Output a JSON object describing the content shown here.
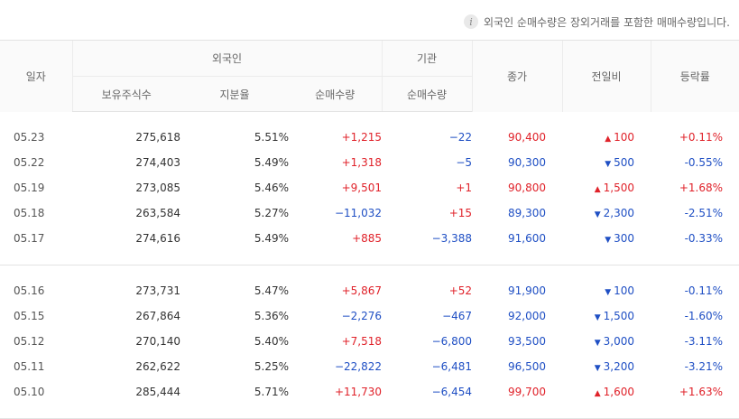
{
  "notice": {
    "icon": "info-icon",
    "text": "외국인 순매수량은 장외거래를 포함한 매매수량입니다."
  },
  "headers": {
    "date": "일자",
    "foreign": "외국인",
    "institution": "기관",
    "close": "종가",
    "change": "전일비",
    "rate": "등락률",
    "holdings": "보유주식수",
    "ratio": "지분율",
    "foreign_net": "순매수량",
    "inst_net": "순매수량"
  },
  "colors": {
    "up": "#e0222a",
    "down": "#1f4fc4"
  },
  "groups": [
    [
      {
        "date": "05.23",
        "holdings": "275,618",
        "ratio": "5.51%",
        "foreign_net": "+1,215",
        "inst_net": "−22",
        "close": "90,400",
        "dir": "up",
        "change": "100",
        "rate": "+0.11%"
      },
      {
        "date": "05.22",
        "holdings": "274,403",
        "ratio": "5.49%",
        "foreign_net": "+1,318",
        "inst_net": "−5",
        "close": "90,300",
        "dir": "down",
        "change": "500",
        "rate": "-0.55%"
      },
      {
        "date": "05.19",
        "holdings": "273,085",
        "ratio": "5.46%",
        "foreign_net": "+9,501",
        "inst_net": "+1",
        "close": "90,800",
        "dir": "up",
        "change": "1,500",
        "rate": "+1.68%"
      },
      {
        "date": "05.18",
        "holdings": "263,584",
        "ratio": "5.27%",
        "foreign_net": "−11,032",
        "inst_net": "+15",
        "close": "89,300",
        "dir": "down",
        "change": "2,300",
        "rate": "-2.51%"
      },
      {
        "date": "05.17",
        "holdings": "274,616",
        "ratio": "5.49%",
        "foreign_net": "+885",
        "inst_net": "−3,388",
        "close": "91,600",
        "dir": "down",
        "change": "300",
        "rate": "-0.33%"
      }
    ],
    [
      {
        "date": "05.16",
        "holdings": "273,731",
        "ratio": "5.47%",
        "foreign_net": "+5,867",
        "inst_net": "+52",
        "close": "91,900",
        "dir": "down",
        "change": "100",
        "rate": "-0.11%"
      },
      {
        "date": "05.15",
        "holdings": "267,864",
        "ratio": "5.36%",
        "foreign_net": "−2,276",
        "inst_net": "−467",
        "close": "92,000",
        "dir": "down",
        "change": "1,500",
        "rate": "-1.60%"
      },
      {
        "date": "05.12",
        "holdings": "270,140",
        "ratio": "5.40%",
        "foreign_net": "+7,518",
        "inst_net": "−6,800",
        "close": "93,500",
        "dir": "down",
        "change": "3,000",
        "rate": "-3.11%"
      },
      {
        "date": "05.11",
        "holdings": "262,622",
        "ratio": "5.25%",
        "foreign_net": "−22,822",
        "inst_net": "−6,481",
        "close": "96,500",
        "dir": "down",
        "change": "3,200",
        "rate": "-3.21%"
      },
      {
        "date": "05.10",
        "holdings": "285,444",
        "ratio": "5.71%",
        "foreign_net": "+11,730",
        "inst_net": "−6,454",
        "close": "99,700",
        "dir": "up",
        "change": "1,600",
        "rate": "+1.63%"
      }
    ]
  ]
}
